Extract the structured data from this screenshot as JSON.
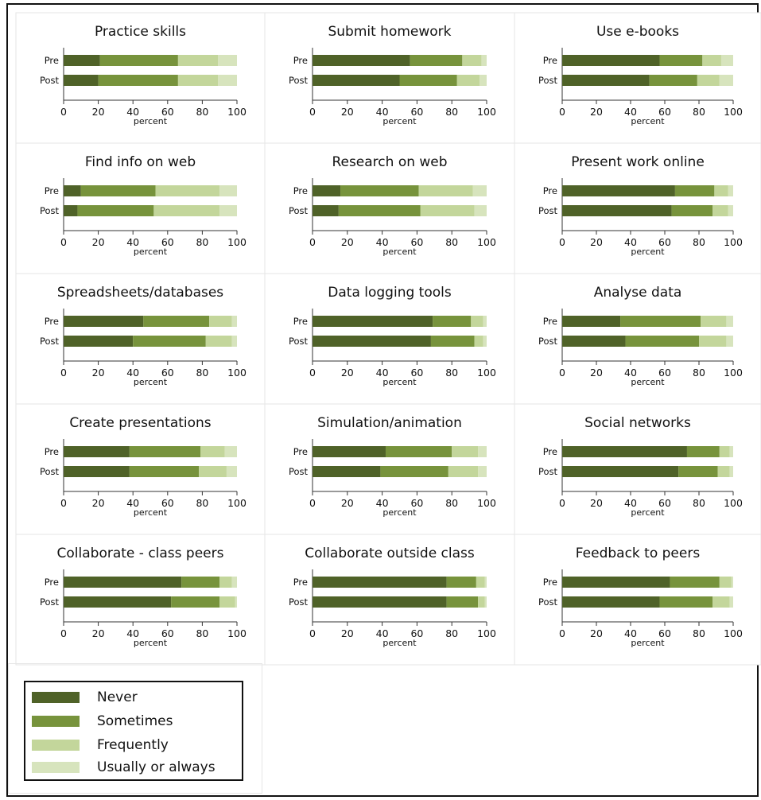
{
  "chart_data": {
    "type": "bar",
    "stacked": true,
    "orientation": "horizontal",
    "categories": [
      "Pre",
      "Post"
    ],
    "xlabel": "percent",
    "xlim": [
      0,
      100
    ],
    "xticks": [
      0,
      20,
      40,
      60,
      80,
      100
    ],
    "legend": {
      "placement": "bottom-left",
      "entries": [
        "Never",
        "Sometimes",
        "Frequently",
        "Usually or always"
      ],
      "colors": [
        "#4f6228",
        "#77933c",
        "#c3d69b",
        "#d7e4bd"
      ]
    },
    "panels": [
      {
        "title": "Practice skills",
        "pre": [
          21,
          45,
          23,
          11
        ],
        "post": [
          20,
          46,
          23,
          11
        ]
      },
      {
        "title": "Submit homework",
        "pre": [
          56,
          30,
          11,
          3
        ],
        "post": [
          50,
          33,
          13,
          4
        ]
      },
      {
        "title": "Use e-books",
        "pre": [
          57,
          25,
          11,
          7
        ],
        "post": [
          51,
          28,
          13,
          8
        ]
      },
      {
        "title": "Find info on web",
        "pre": [
          10,
          43,
          37,
          10
        ],
        "post": [
          8,
          44,
          38,
          10
        ]
      },
      {
        "title": "Research on web",
        "pre": [
          16,
          45,
          31,
          8
        ],
        "post": [
          15,
          47,
          31,
          7
        ]
      },
      {
        "title": "Present work online",
        "pre": [
          66,
          23,
          8,
          3
        ],
        "post": [
          64,
          24,
          9,
          3
        ]
      },
      {
        "title": "Spreadsheets/databases",
        "pre": [
          46,
          38,
          13,
          3
        ],
        "post": [
          40,
          42,
          15,
          3
        ]
      },
      {
        "title": "Data logging tools",
        "pre": [
          69,
          22,
          7,
          2
        ],
        "post": [
          68,
          25,
          5,
          2
        ]
      },
      {
        "title": "Analyse data",
        "pre": [
          34,
          47,
          15,
          4
        ],
        "post": [
          37,
          43,
          16,
          4
        ]
      },
      {
        "title": "Create presentations",
        "pre": [
          38,
          41,
          14,
          7
        ],
        "post": [
          38,
          40,
          16,
          6
        ]
      },
      {
        "title": "Simulation/animation",
        "pre": [
          42,
          38,
          15,
          5
        ],
        "post": [
          39,
          39,
          17,
          5
        ]
      },
      {
        "title": "Social networks",
        "pre": [
          73,
          19,
          6,
          2
        ],
        "post": [
          68,
          23,
          7,
          2
        ]
      },
      {
        "title": "Collaborate - class peers",
        "pre": [
          68,
          22,
          7,
          3
        ],
        "post": [
          62,
          28,
          9,
          1
        ]
      },
      {
        "title": "Collaborate outside class",
        "pre": [
          77,
          17,
          5,
          1
        ],
        "post": [
          77,
          18,
          4,
          1
        ]
      },
      {
        "title": "Feedback to peers",
        "pre": [
          63,
          29,
          7,
          1
        ],
        "post": [
          57,
          31,
          10,
          2
        ]
      }
    ]
  }
}
